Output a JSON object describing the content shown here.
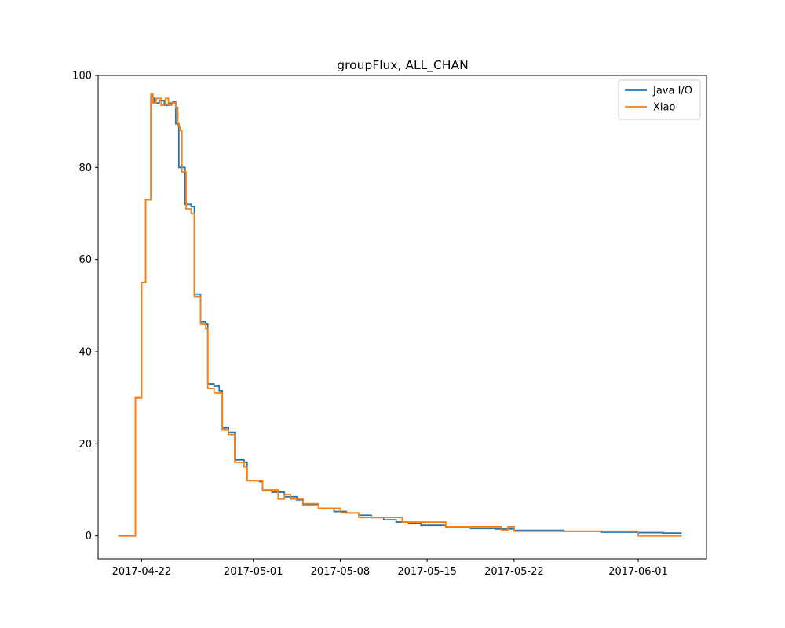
{
  "chart_data": {
    "type": "line",
    "title": "groupFlux, ALL_CHAN",
    "xlabel": "",
    "ylabel": "",
    "x_axis_type": "date",
    "xlim": [
      "2017-04-18T12:00",
      "2017-06-06T12:00"
    ],
    "ylim": [
      -5,
      100
    ],
    "x_ticks": [
      "2017-04-22",
      "2017-05-01",
      "2017-05-08",
      "2017-05-15",
      "2017-05-22",
      "2017-06-01"
    ],
    "y_ticks": [
      0,
      20,
      40,
      60,
      80,
      100
    ],
    "grid": false,
    "legend_position": "top-right",
    "series": [
      {
        "name": "Java I/O",
        "color": "#1f77b4",
        "step": true,
        "points": [
          [
            "2017-04-20T03:00",
            0
          ],
          [
            "2017-04-21T00:00",
            0
          ],
          [
            "2017-04-21T12:00",
            30
          ],
          [
            "2017-04-22T00:00",
            55
          ],
          [
            "2017-04-22T08:00",
            73
          ],
          [
            "2017-04-22T18:00",
            95
          ],
          [
            "2017-04-23T00:00",
            94
          ],
          [
            "2017-04-23T10:00",
            94.5
          ],
          [
            "2017-04-23T20:00",
            93.5
          ],
          [
            "2017-04-24T04:00",
            94
          ],
          [
            "2017-04-24T12:00",
            94.2
          ],
          [
            "2017-04-24T18:00",
            89.5
          ],
          [
            "2017-04-25T00:00",
            80
          ],
          [
            "2017-04-25T12:00",
            72
          ],
          [
            "2017-04-26T00:00",
            71.5
          ],
          [
            "2017-04-26T06:00",
            52.5
          ],
          [
            "2017-04-26T18:00",
            46.5
          ],
          [
            "2017-04-27T04:00",
            46
          ],
          [
            "2017-04-27T08:00",
            33
          ],
          [
            "2017-04-27T20:00",
            32.5
          ],
          [
            "2017-04-28T06:00",
            31.5
          ],
          [
            "2017-04-28T12:00",
            23.5
          ],
          [
            "2017-04-29T00:00",
            22.5
          ],
          [
            "2017-04-29T12:00",
            16.5
          ],
          [
            "2017-04-30T06:00",
            16
          ],
          [
            "2017-04-30T12:00",
            12
          ],
          [
            "2017-05-01T12:00",
            11.8
          ],
          [
            "2017-05-01T18:00",
            9.8
          ],
          [
            "2017-05-02T12:00",
            9.5
          ],
          [
            "2017-05-03T12:00",
            8.5
          ],
          [
            "2017-05-04T12:00",
            7.8
          ],
          [
            "2017-05-05T00:00",
            6.8
          ],
          [
            "2017-05-06T06:00",
            6
          ],
          [
            "2017-05-07T12:00",
            5.3
          ],
          [
            "2017-05-08T12:00",
            5
          ],
          [
            "2017-05-09T12:00",
            4.5
          ],
          [
            "2017-05-10T12:00",
            4
          ],
          [
            "2017-05-11T12:00",
            3.5
          ],
          [
            "2017-05-12T12:00",
            3
          ],
          [
            "2017-05-13T12:00",
            2.7
          ],
          [
            "2017-05-14T12:00",
            2.3
          ],
          [
            "2017-05-16T12:00",
            1.8
          ],
          [
            "2017-05-18T12:00",
            1.6
          ],
          [
            "2017-05-20T12:00",
            1.5
          ],
          [
            "2017-05-22T00:00",
            1.2
          ],
          [
            "2017-05-26T00:00",
            1
          ],
          [
            "2017-05-29T00:00",
            0.8
          ],
          [
            "2017-06-01T00:00",
            0.7
          ],
          [
            "2017-06-03T00:00",
            0.6
          ],
          [
            "2017-06-04T12:00",
            0.6
          ]
        ]
      },
      {
        "name": "Xiao",
        "color": "#ff7f0e",
        "step": true,
        "points": [
          [
            "2017-04-20T03:00",
            0
          ],
          [
            "2017-04-21T00:00",
            0
          ],
          [
            "2017-04-21T12:00",
            30
          ],
          [
            "2017-04-22T00:00",
            55
          ],
          [
            "2017-04-22T08:00",
            73
          ],
          [
            "2017-04-22T18:00",
            96
          ],
          [
            "2017-04-22T22:00",
            94
          ],
          [
            "2017-04-23T04:00",
            95
          ],
          [
            "2017-04-23T14:00",
            93.5
          ],
          [
            "2017-04-23T22:00",
            95
          ],
          [
            "2017-04-24T04:00",
            93.5
          ],
          [
            "2017-04-24T10:00",
            94
          ],
          [
            "2017-04-24T18:00",
            93
          ],
          [
            "2017-04-24T22:00",
            89
          ],
          [
            "2017-04-25T02:00",
            88
          ],
          [
            "2017-04-25T06:00",
            79
          ],
          [
            "2017-04-25T14:00",
            71
          ],
          [
            "2017-04-26T00:00",
            70
          ],
          [
            "2017-04-26T06:00",
            52
          ],
          [
            "2017-04-26T18:00",
            46
          ],
          [
            "2017-04-27T04:00",
            45
          ],
          [
            "2017-04-27T08:00",
            32
          ],
          [
            "2017-04-27T20:00",
            31
          ],
          [
            "2017-04-28T06:00",
            31
          ],
          [
            "2017-04-28T12:00",
            23
          ],
          [
            "2017-04-29T00:00",
            22
          ],
          [
            "2017-04-29T12:00",
            16
          ],
          [
            "2017-04-30T06:00",
            15
          ],
          [
            "2017-04-30T12:00",
            12
          ],
          [
            "2017-05-01T12:00",
            12
          ],
          [
            "2017-05-01T18:00",
            10
          ],
          [
            "2017-05-02T12:00",
            10
          ],
          [
            "2017-05-03T00:00",
            8
          ],
          [
            "2017-05-03T12:00",
            9
          ],
          [
            "2017-05-04T00:00",
            8
          ],
          [
            "2017-05-05T00:00",
            7
          ],
          [
            "2017-05-06T06:00",
            6
          ],
          [
            "2017-05-08T00:00",
            5
          ],
          [
            "2017-05-09T12:00",
            4
          ],
          [
            "2017-05-10T12:00",
            4
          ],
          [
            "2017-05-12T12:00",
            4
          ],
          [
            "2017-05-13T00:00",
            3
          ],
          [
            "2017-05-16T12:00",
            2
          ],
          [
            "2017-05-21T00:00",
            1.2
          ],
          [
            "2017-05-21T12:00",
            2
          ],
          [
            "2017-05-22T00:00",
            1
          ],
          [
            "2017-05-31T00:00",
            1
          ],
          [
            "2017-06-01T00:00",
            0
          ],
          [
            "2017-06-04T12:00",
            0
          ]
        ]
      }
    ]
  }
}
